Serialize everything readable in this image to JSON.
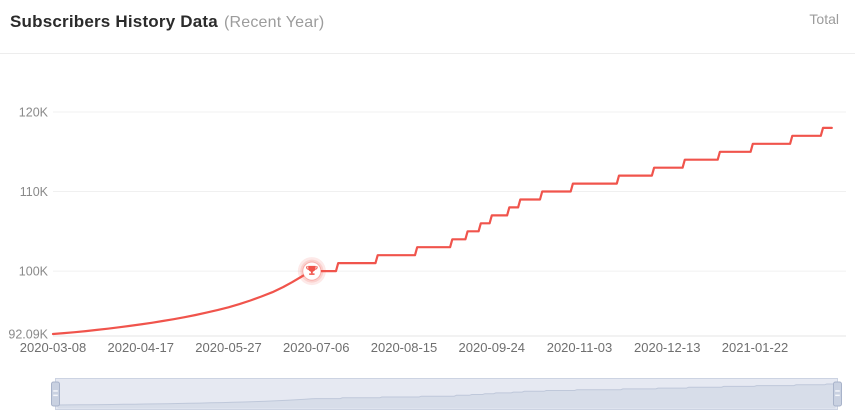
{
  "header": {
    "title": "Subscribers History Data",
    "subtitle": "(Recent Year)",
    "right_label": "Total"
  },
  "chart_data": {
    "type": "line",
    "title": "Subscribers History Data (Recent Year)",
    "series_name": "Total subscribers",
    "line_color": "#f0544c",
    "grid_color": "#f0f0f0",
    "axis_line_color": "#e6e6e6",
    "y_label_color": "#8a8a8a",
    "x_label_color": "#6f6f6f",
    "legend_position": "top-right",
    "grid": "horizontal-only",
    "x_start": "2020-03-08",
    "x_end": "2021-02-26",
    "y_min": 92090,
    "y_max": 121000,
    "x_ticks": [
      "2020-03-08",
      "2020-04-17",
      "2020-05-27",
      "2020-07-06",
      "2020-08-15",
      "2020-09-24",
      "2020-11-03",
      "2020-12-13",
      "2021-01-22"
    ],
    "y_ticks": [
      {
        "label": "120K",
        "value": 120000
      },
      {
        "label": "110K",
        "value": 110000
      },
      {
        "label": "100K",
        "value": 100000
      },
      {
        "label": "92.09K",
        "value": 92090
      }
    ],
    "milestone": {
      "date": "2020-07-04",
      "value": 100000,
      "name": "100K subscribers milestone",
      "icon": "trophy-icon"
    },
    "points": [
      [
        "2020-03-08",
        92090
      ],
      [
        "2020-03-13",
        92200
      ],
      [
        "2020-03-18",
        92320
      ],
      [
        "2020-03-23",
        92450
      ],
      [
        "2020-03-28",
        92600
      ],
      [
        "2020-04-02",
        92760
      ],
      [
        "2020-04-07",
        92930
      ],
      [
        "2020-04-12",
        93110
      ],
      [
        "2020-04-17",
        93300
      ],
      [
        "2020-04-22",
        93500
      ],
      [
        "2020-04-27",
        93720
      ],
      [
        "2020-05-02",
        93950
      ],
      [
        "2020-05-07",
        94200
      ],
      [
        "2020-05-12",
        94480
      ],
      [
        "2020-05-17",
        94780
      ],
      [
        "2020-05-22",
        95100
      ],
      [
        "2020-05-27",
        95450
      ],
      [
        "2020-06-01",
        95850
      ],
      [
        "2020-06-06",
        96300
      ],
      [
        "2020-06-11",
        96800
      ],
      [
        "2020-06-16",
        97350
      ],
      [
        "2020-06-21",
        98000
      ],
      [
        "2020-06-25",
        98600
      ],
      [
        "2020-06-29",
        99250
      ],
      [
        "2020-07-02",
        99750
      ],
      [
        "2020-07-04",
        100000
      ],
      [
        "2020-07-15",
        100000
      ],
      [
        "2020-07-16",
        101000
      ],
      [
        "2020-08-02",
        101000
      ],
      [
        "2020-08-03",
        102000
      ],
      [
        "2020-08-20",
        102000
      ],
      [
        "2020-08-21",
        103000
      ],
      [
        "2020-09-05",
        103000
      ],
      [
        "2020-09-06",
        104000
      ],
      [
        "2020-09-12",
        104000
      ],
      [
        "2020-09-13",
        105000
      ],
      [
        "2020-09-18",
        105000
      ],
      [
        "2020-09-19",
        106000
      ],
      [
        "2020-09-23",
        106000
      ],
      [
        "2020-09-24",
        107000
      ],
      [
        "2020-10-01",
        107000
      ],
      [
        "2020-10-02",
        108000
      ],
      [
        "2020-10-06",
        108000
      ],
      [
        "2020-10-07",
        109000
      ],
      [
        "2020-10-16",
        109000
      ],
      [
        "2020-10-17",
        110000
      ],
      [
        "2020-10-30",
        110000
      ],
      [
        "2020-10-31",
        111000
      ],
      [
        "2020-11-20",
        111000
      ],
      [
        "2020-11-21",
        112000
      ],
      [
        "2020-12-06",
        112000
      ],
      [
        "2020-12-07",
        113000
      ],
      [
        "2020-12-20",
        113000
      ],
      [
        "2020-12-21",
        114000
      ],
      [
        "2021-01-05",
        114000
      ],
      [
        "2021-01-06",
        115000
      ],
      [
        "2021-01-20",
        115000
      ],
      [
        "2021-01-21",
        116000
      ],
      [
        "2021-02-07",
        116000
      ],
      [
        "2021-02-08",
        117000
      ],
      [
        "2021-02-21",
        117000
      ],
      [
        "2021-02-22",
        118000
      ],
      [
        "2021-02-26",
        118000
      ]
    ]
  },
  "slider": {
    "name": "date-range-zoom-slider",
    "selected_start": "2020-03-08",
    "selected_end": "2021-02-26",
    "track_fill": "#e6e9f2",
    "track_border": "#ccd3e2",
    "shadow_area": "#d7dde9",
    "shadow_line": "#bfc8da",
    "handle_fill": "#c9d1e1",
    "handle_border": "#a8b3ca",
    "handle_grip": "#f4f6fa"
  }
}
